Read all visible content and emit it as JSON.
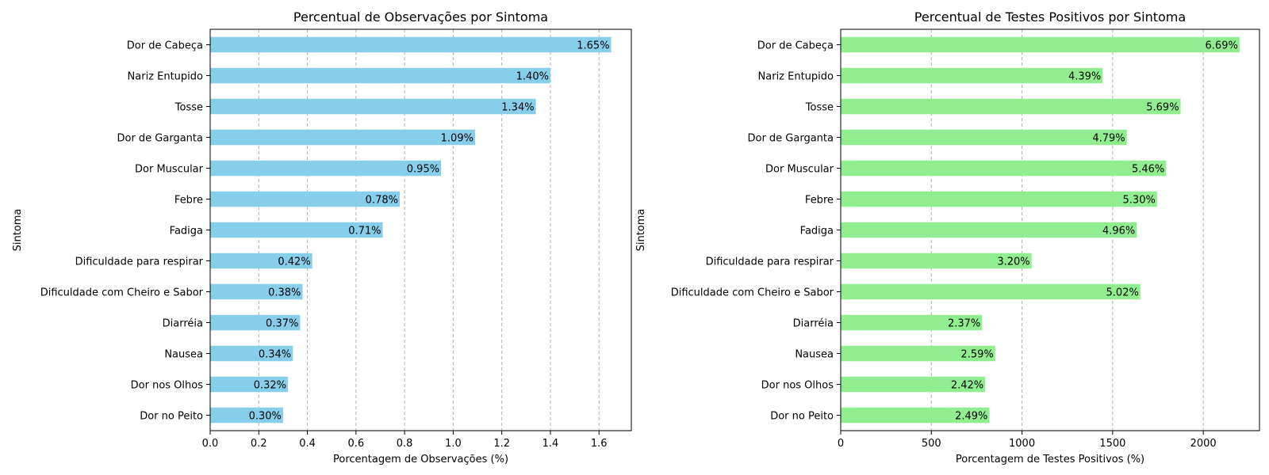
{
  "chart_data": [
    {
      "type": "bar",
      "orientation": "horizontal",
      "title": "Percentual de Observações por Sintoma",
      "xlabel": "Porcentagem de Observações (%)",
      "ylabel": "Sintoma",
      "categories": [
        "Dor de Cabeça",
        "Nariz Entupido",
        "Tosse",
        "Dor de Garganta",
        "Dor Muscular",
        "Febre",
        "Fadiga",
        "Dificuldade para respirar",
        "Dificuldade com Cheiro e Sabor",
        "Diarréia",
        "Nausea",
        "Dor nos Olhos",
        "Dor no Peito"
      ],
      "values": [
        1.65,
        1.4,
        1.34,
        1.09,
        0.95,
        0.78,
        0.71,
        0.42,
        0.38,
        0.37,
        0.34,
        0.32,
        0.3
      ],
      "data_labels": [
        "1.65%",
        "1.40%",
        "1.34%",
        "1.09%",
        "0.95%",
        "0.78%",
        "0.71%",
        "0.42%",
        "0.38%",
        "0.37%",
        "0.34%",
        "0.32%",
        "0.30%"
      ],
      "xlim": [
        0,
        1.733
      ],
      "xticks": [
        0.0,
        0.2,
        0.4,
        0.6,
        0.8,
        1.0,
        1.2,
        1.4,
        1.6
      ],
      "xtick_labels": [
        "0.0",
        "0.2",
        "0.4",
        "0.6",
        "0.8",
        "1.0",
        "1.2",
        "1.4",
        "1.6"
      ],
      "grid": "x, dashed",
      "color": "#87ceeb"
    },
    {
      "type": "bar",
      "orientation": "horizontal",
      "title": "Percentual de Testes Positivos por Sintoma",
      "xlabel": "Porcentagem de Testes Positivos (%)",
      "ylabel": "Sintoma",
      "categories": [
        "Dor de Cabeça",
        "Nariz Entupido",
        "Tosse",
        "Dor de Garganta",
        "Dor Muscular",
        "Febre",
        "Fadiga",
        "Dificuldade para respirar",
        "Dificuldade com Cheiro e Sabor",
        "Diarréia",
        "Nausea",
        "Dor nos Olhos",
        "Dor no Peito"
      ],
      "values": [
        2200,
        1445,
        1875,
        1578,
        1795,
        1745,
        1633,
        1053,
        1653,
        780,
        852,
        797,
        820
      ],
      "data_labels": [
        "6.69%",
        "4.39%",
        "5.69%",
        "4.79%",
        "5.46%",
        "5.30%",
        "4.96%",
        "3.20%",
        "5.02%",
        "2.37%",
        "2.59%",
        "2.42%",
        "2.49%"
      ],
      "xlim": [
        0,
        2310
      ],
      "xticks": [
        0,
        500,
        1000,
        1500,
        2000
      ],
      "xtick_labels": [
        "0",
        "500",
        "1000",
        "1500",
        "2000"
      ],
      "grid": "x, dashed",
      "color": "#90ee90"
    }
  ]
}
